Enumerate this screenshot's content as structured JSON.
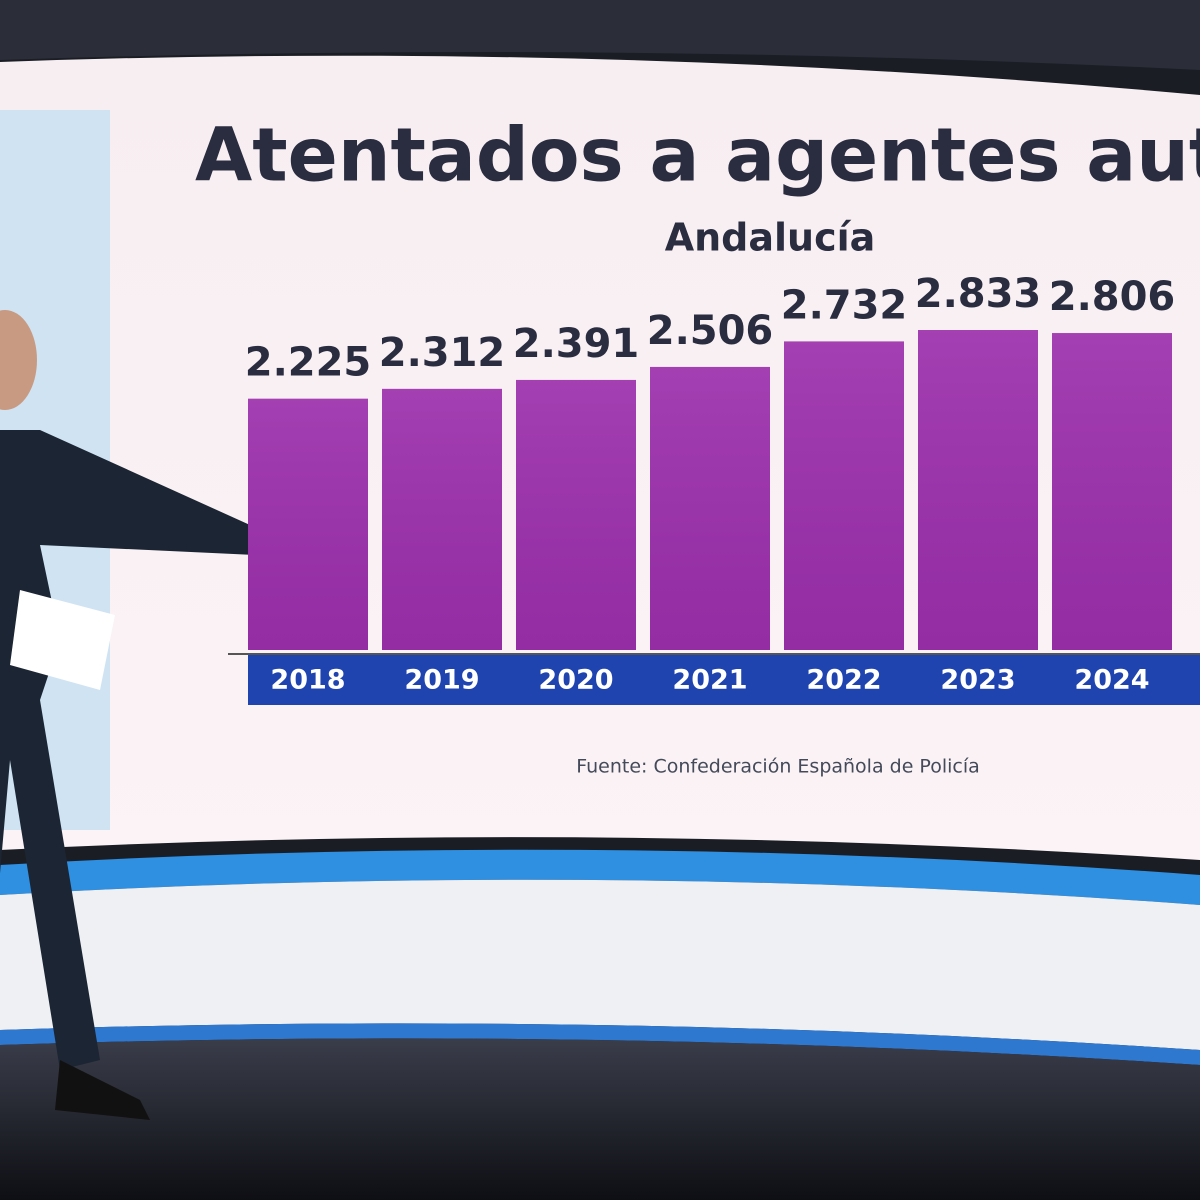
{
  "chart_data": {
    "type": "bar",
    "title": "Atentados a agentes autor",
    "subtitle": "Andalucía",
    "categories": [
      "2018",
      "2019",
      "2020",
      "2021",
      "2022",
      "2023",
      "2024"
    ],
    "values": [
      2225,
      2312,
      2391,
      2506,
      2732,
      2833,
      2806
    ],
    "value_labels": [
      "2.225",
      "2.312",
      "2.391",
      "2.506",
      "2.732",
      "2.833",
      "2.806"
    ],
    "color": "#9c2fac",
    "source": "Fuente: Confederación Española de Policía"
  }
}
